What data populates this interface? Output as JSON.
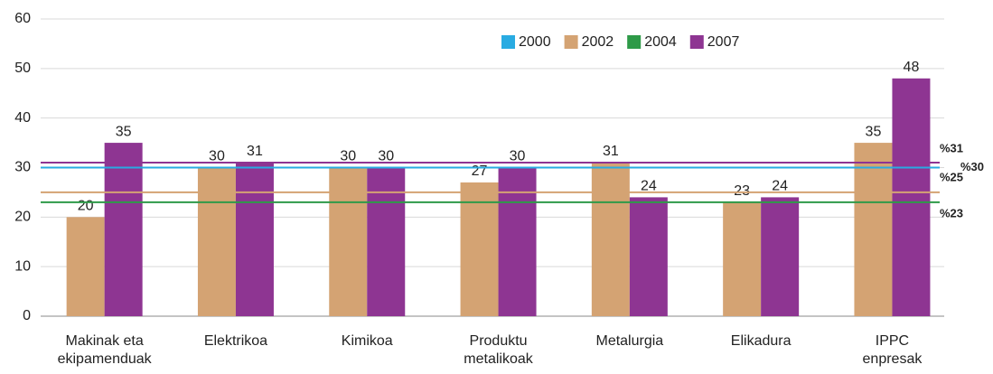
{
  "chart_data": {
    "type": "bar",
    "categories": [
      "Makinak eta\nekipamenduak",
      "Elektrikoa",
      "Kimikoa",
      "Produktu\nmetalikoak",
      "Metalurgia",
      "Elikadura",
      "IPPC\nenpresak"
    ],
    "series": [
      {
        "name": "2000",
        "color": "#29abe2",
        "values": [
          null,
          null,
          null,
          null,
          null,
          null,
          null
        ],
        "average": 30,
        "average_label": "%30"
      },
      {
        "name": "2002",
        "color": "#d4a373",
        "values": [
          20,
          30,
          30,
          27,
          31,
          23,
          35
        ],
        "average": 25,
        "average_label": "%25"
      },
      {
        "name": "2004",
        "color": "#2e9a48",
        "values": [
          null,
          null,
          null,
          null,
          null,
          null,
          null
        ],
        "average": 23,
        "average_label": "%23"
      },
      {
        "name": "2007",
        "color": "#8e3592",
        "values": [
          35,
          31,
          30,
          30,
          24,
          24,
          48
        ],
        "average": 31,
        "average_label": "%31"
      }
    ],
    "ylim": [
      0,
      60
    ],
    "yticks": [
      0,
      10,
      20,
      30,
      40,
      50,
      60
    ],
    "grid": true
  }
}
